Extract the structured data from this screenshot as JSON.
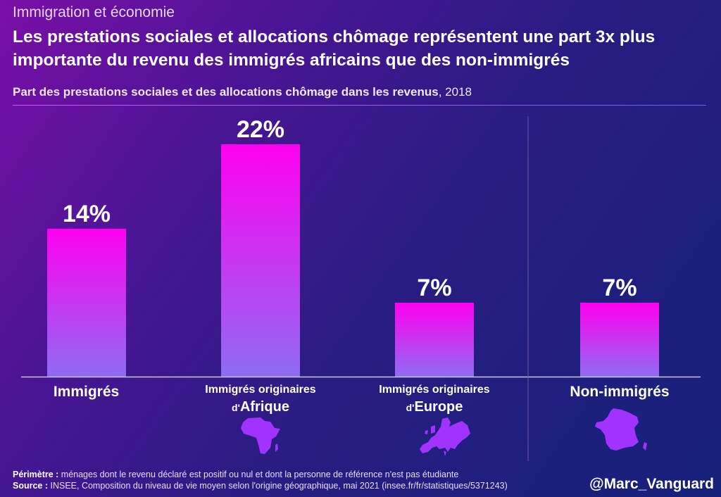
{
  "header": {
    "kicker": "Immigration et économie",
    "title": "Les prestations sociales et allocations chômage représentent une part 3x plus importante du revenu des immigrés africains que des non-immigrés",
    "subtitle_bold": "Part des prestations sociales et des allocations chômage dans les revenus",
    "subtitle_year": ", 2018"
  },
  "chart_data": {
    "type": "bar",
    "title": "Part des prestations sociales et des allocations chômage dans les revenus, 2018",
    "categories": [
      "Immigrés",
      "Immigrés originaires d'Afrique",
      "Immigrés originaires d'Europe",
      "Non-immigrés"
    ],
    "values": [
      14,
      22,
      7,
      7
    ],
    "value_labels": [
      "14%",
      "22%",
      "7%",
      "7%"
    ],
    "unit": "%",
    "ylim": [
      0,
      25
    ],
    "grid": false,
    "legend": "none"
  },
  "labels": {
    "cat1": "Immigrés",
    "cat2_line1": "Immigrés originaires",
    "cat2_prefix": "d'",
    "cat2_region": "Afrique",
    "cat3_line1": "Immigrés originaires",
    "cat3_prefix": "d'",
    "cat3_region": "Europe",
    "cat4": "Non-immigrés"
  },
  "footer": {
    "perimetre_label": "Périmètre :",
    "perimetre_text": " ménages dont le revenu déclaré est positif ou nul et dont la personne de référence n'est pas étudiante",
    "source_label": "Source :",
    "source_text": " INSEE, Composition du niveau de vie moyen selon l'origine géographique, mai 2021 (insee.fr/fr/statistiques/5371243)",
    "handle": "@Marc_Vanguard"
  },
  "colors": {
    "bar_top": "#ff00f0",
    "bar_bottom": "#8f6cf2",
    "map_fill": "#a033ff",
    "separator": "#6d5aa8",
    "baseline": "#c9c2e6"
  }
}
